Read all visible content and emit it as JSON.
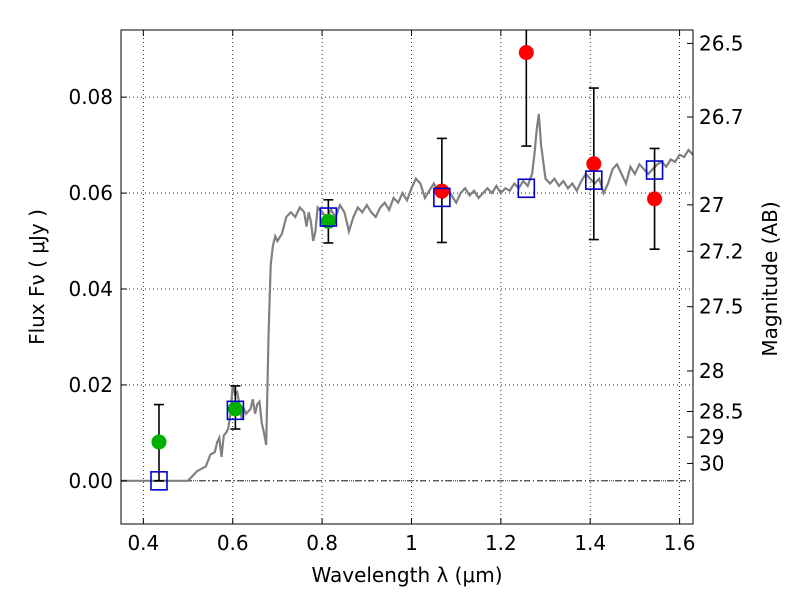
{
  "chart_data": {
    "type": "scatter",
    "xlabel": "Wavelength  λ (μm)",
    "ylabel": "Flux  Fν  ( μJy )",
    "ylabel_right": "Magnitude (AB)",
    "xlim": [
      0.35,
      1.63
    ],
    "ylim": [
      -0.009,
      0.094
    ],
    "grid": true,
    "x_ticks": [
      0.4,
      0.6,
      0.8,
      1.0,
      1.2,
      1.4,
      1.6
    ],
    "x_tick_labels": [
      "0.4",
      "0.6",
      "0.8",
      "1",
      "1.2",
      "1.4",
      "1.6"
    ],
    "y_ticks": [
      0.0,
      0.02,
      0.04,
      0.06,
      0.08
    ],
    "y_tick_labels": [
      "0.00",
      "0.02",
      "0.04",
      "0.06",
      "0.08"
    ],
    "right_ticks": [
      {
        "mag": 26.5,
        "label": "26.5"
      },
      {
        "mag": 26.7,
        "label": "26.7"
      },
      {
        "mag": 27.0,
        "label": "27"
      },
      {
        "mag": 27.2,
        "label": "27.2"
      },
      {
        "mag": 27.5,
        "label": "27.5"
      },
      {
        "mag": 28.0,
        "label": "28"
      },
      {
        "mag": 28.5,
        "label": "28.5"
      },
      {
        "mag": 29.0,
        "label": "29"
      },
      {
        "mag": 30.0,
        "label": "30"
      }
    ],
    "mag_zeropoint": 23.9,
    "colors": {
      "sed": "#808080",
      "green": "#00b000",
      "red": "#ff0000",
      "model": "#0000cc",
      "errorbar": "#000000",
      "zero_line": "#000000"
    },
    "series": [
      {
        "kind": "points",
        "color": "green",
        "points": [
          {
            "x": 0.435,
            "y": 0.0081,
            "err_lo": 0.0081,
            "err_hi": 0.0078
          },
          {
            "x": 0.606,
            "y": 0.015,
            "err_lo": 0.0042,
            "err_hi": 0.0048
          },
          {
            "x": 0.814,
            "y": 0.0541,
            "err_lo": 0.0045,
            "err_hi": 0.0045
          }
        ]
      },
      {
        "kind": "points",
        "color": "red",
        "points": [
          {
            "x": 1.068,
            "y": 0.0604,
            "err_lo": 0.0107,
            "err_hi": 0.011
          },
          {
            "x": 1.257,
            "y": 0.0893,
            "err_lo": 0.0195,
            "err_hi": 0.0047
          },
          {
            "x": 1.408,
            "y": 0.0661,
            "err_lo": 0.0158,
            "err_hi": 0.0158
          },
          {
            "x": 1.544,
            "y": 0.0588,
            "err_lo": 0.0105,
            "err_hi": 0.0105
          }
        ]
      },
      {
        "kind": "squares",
        "color": "model",
        "points": [
          {
            "x": 0.435,
            "y": 0.0
          },
          {
            "x": 0.606,
            "y": 0.0147
          },
          {
            "x": 0.814,
            "y": 0.055
          },
          {
            "x": 1.068,
            "y": 0.0591
          },
          {
            "x": 1.257,
            "y": 0.061
          },
          {
            "x": 1.408,
            "y": 0.0627
          },
          {
            "x": 1.544,
            "y": 0.0648
          }
        ]
      }
    ],
    "sed_curve": [
      [
        0.35,
        0.0
      ],
      [
        0.5,
        0.0
      ],
      [
        0.52,
        0.002
      ],
      [
        0.54,
        0.003
      ],
      [
        0.55,
        0.0055
      ],
      [
        0.56,
        0.006
      ],
      [
        0.565,
        0.008
      ],
      [
        0.57,
        0.009
      ],
      [
        0.575,
        0.005
      ],
      [
        0.58,
        0.0095
      ],
      [
        0.585,
        0.01
      ],
      [
        0.59,
        0.011
      ],
      [
        0.595,
        0.014
      ],
      [
        0.6,
        0.02
      ],
      [
        0.605,
        0.018
      ],
      [
        0.61,
        0.0185
      ],
      [
        0.615,
        0.016
      ],
      [
        0.62,
        0.013
      ],
      [
        0.625,
        0.015
      ],
      [
        0.63,
        0.014
      ],
      [
        0.64,
        0.015
      ],
      [
        0.645,
        0.017
      ],
      [
        0.65,
        0.014
      ],
      [
        0.655,
        0.016
      ],
      [
        0.66,
        0.0165
      ],
      [
        0.665,
        0.012
      ],
      [
        0.67,
        0.01
      ],
      [
        0.675,
        0.0075
      ],
      [
        0.68,
        0.03
      ],
      [
        0.685,
        0.045
      ],
      [
        0.69,
        0.049
      ],
      [
        0.695,
        0.051
      ],
      [
        0.7,
        0.05
      ],
      [
        0.71,
        0.0515
      ],
      [
        0.72,
        0.055
      ],
      [
        0.73,
        0.056
      ],
      [
        0.74,
        0.055
      ],
      [
        0.75,
        0.057
      ],
      [
        0.76,
        0.056
      ],
      [
        0.765,
        0.053
      ],
      [
        0.77,
        0.056
      ],
      [
        0.775,
        0.054
      ],
      [
        0.78,
        0.05
      ],
      [
        0.785,
        0.052
      ],
      [
        0.79,
        0.057
      ],
      [
        0.8,
        0.056
      ],
      [
        0.81,
        0.055
      ],
      [
        0.82,
        0.0565
      ],
      [
        0.83,
        0.055
      ],
      [
        0.84,
        0.0575
      ],
      [
        0.85,
        0.056
      ],
      [
        0.855,
        0.054
      ],
      [
        0.86,
        0.052
      ],
      [
        0.87,
        0.055
      ],
      [
        0.88,
        0.057
      ],
      [
        0.89,
        0.056
      ],
      [
        0.9,
        0.0575
      ],
      [
        0.91,
        0.056
      ],
      [
        0.92,
        0.055
      ],
      [
        0.93,
        0.057
      ],
      [
        0.94,
        0.058
      ],
      [
        0.95,
        0.0565
      ],
      [
        0.96,
        0.059
      ],
      [
        0.97,
        0.058
      ],
      [
        0.98,
        0.06
      ],
      [
        0.99,
        0.0585
      ],
      [
        1.0,
        0.061
      ],
      [
        1.01,
        0.063
      ],
      [
        1.02,
        0.062
      ],
      [
        1.03,
        0.059
      ],
      [
        1.04,
        0.0605
      ],
      [
        1.05,
        0.062
      ],
      [
        1.06,
        0.06
      ],
      [
        1.07,
        0.059
      ],
      [
        1.08,
        0.061
      ],
      [
        1.09,
        0.0595
      ],
      [
        1.1,
        0.058
      ],
      [
        1.11,
        0.06
      ],
      [
        1.12,
        0.061
      ],
      [
        1.13,
        0.0595
      ],
      [
        1.14,
        0.0605
      ],
      [
        1.15,
        0.059
      ],
      [
        1.16,
        0.06
      ],
      [
        1.17,
        0.061
      ],
      [
        1.18,
        0.06
      ],
      [
        1.19,
        0.0615
      ],
      [
        1.2,
        0.06
      ],
      [
        1.21,
        0.061
      ],
      [
        1.22,
        0.0605
      ],
      [
        1.23,
        0.062
      ],
      [
        1.24,
        0.061
      ],
      [
        1.25,
        0.0625
      ],
      [
        1.26,
        0.0615
      ],
      [
        1.27,
        0.064
      ],
      [
        1.275,
        0.068
      ],
      [
        1.28,
        0.073
      ],
      [
        1.285,
        0.0765
      ],
      [
        1.29,
        0.07
      ],
      [
        1.3,
        0.063
      ],
      [
        1.31,
        0.062
      ],
      [
        1.32,
        0.063
      ],
      [
        1.33,
        0.0615
      ],
      [
        1.34,
        0.0625
      ],
      [
        1.35,
        0.061
      ],
      [
        1.36,
        0.062
      ],
      [
        1.37,
        0.0605
      ],
      [
        1.38,
        0.0625
      ],
      [
        1.39,
        0.064
      ],
      [
        1.4,
        0.063
      ],
      [
        1.41,
        0.062
      ],
      [
        1.42,
        0.063
      ],
      [
        1.43,
        0.06
      ],
      [
        1.44,
        0.062
      ],
      [
        1.45,
        0.065
      ],
      [
        1.46,
        0.066
      ],
      [
        1.47,
        0.064
      ],
      [
        1.48,
        0.062
      ],
      [
        1.49,
        0.0655
      ],
      [
        1.5,
        0.064
      ],
      [
        1.51,
        0.066
      ],
      [
        1.52,
        0.065
      ],
      [
        1.53,
        0.064
      ],
      [
        1.54,
        0.065
      ],
      [
        1.55,
        0.066
      ],
      [
        1.56,
        0.0665
      ],
      [
        1.57,
        0.0655
      ],
      [
        1.58,
        0.067
      ],
      [
        1.59,
        0.0665
      ],
      [
        1.6,
        0.068
      ],
      [
        1.61,
        0.0675
      ],
      [
        1.62,
        0.069
      ],
      [
        1.63,
        0.068
      ]
    ]
  }
}
